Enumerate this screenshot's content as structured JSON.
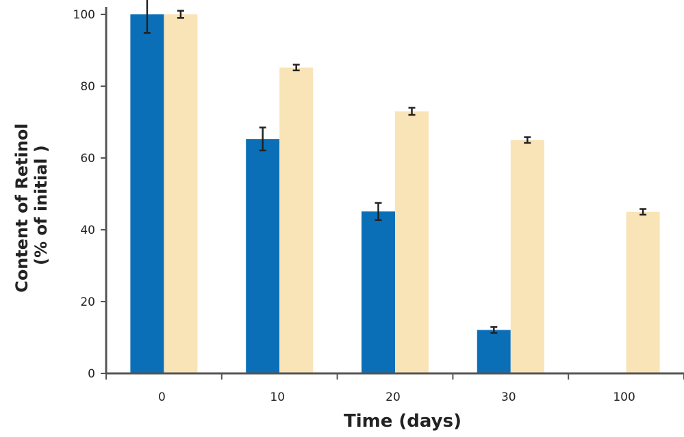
{
  "chart_data": {
    "type": "bar",
    "categories": [
      "0",
      "10",
      "20",
      "30",
      "100"
    ],
    "series": [
      {
        "color": "#0b6fb8",
        "values": [
          100,
          65.3,
          45.1,
          12.1,
          null
        ],
        "errors": [
          5.2,
          3.2,
          2.4,
          0.8,
          null
        ]
      },
      {
        "color": "#f9e4b7",
        "values": [
          100,
          85.2,
          73,
          65,
          45
        ],
        "errors": [
          1.0,
          0.8,
          1.0,
          0.8,
          0.8
        ]
      }
    ],
    "xlabel": "Time (days)",
    "ylabel": [
      "Content of Retinol",
      "(% of initial )"
    ],
    "ylim": [
      0,
      100
    ],
    "yticks": [
      "0",
      "20",
      "40",
      "60",
      "80",
      "100"
    ],
    "grid": false,
    "legend": "none"
  }
}
